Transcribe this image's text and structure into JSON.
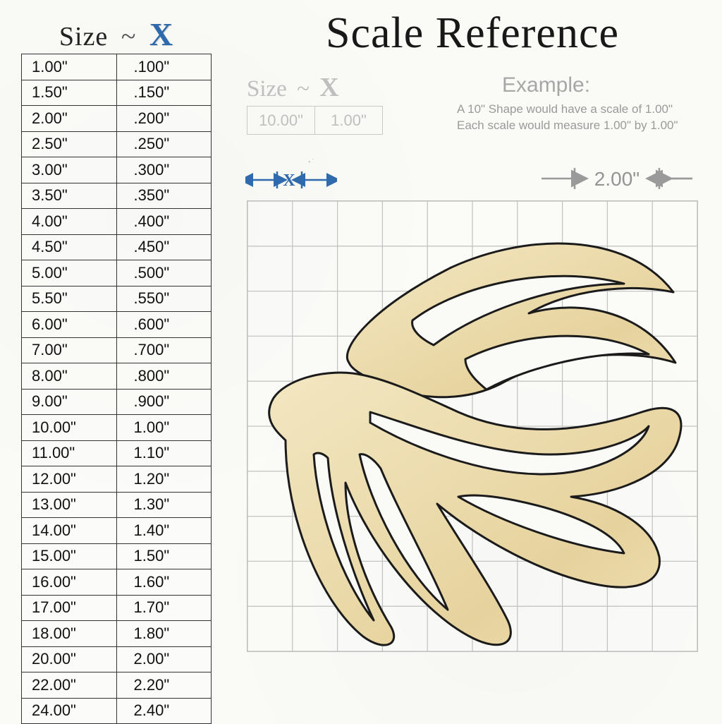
{
  "title": "Scale Reference",
  "left_header": {
    "label": "Size",
    "dash": "~",
    "x": "X"
  },
  "size_rows": [
    [
      "1.00\"",
      ".100\""
    ],
    [
      "1.50\"",
      ".150\""
    ],
    [
      "2.00\"",
      ".200\""
    ],
    [
      "2.50\"",
      ".250\""
    ],
    [
      "3.00\"",
      ".300\""
    ],
    [
      "3.50\"",
      ".350\""
    ],
    [
      "4.00\"",
      ".400\""
    ],
    [
      "4.50\"",
      ".450\""
    ],
    [
      "5.00\"",
      ".500\""
    ],
    [
      "5.50\"",
      ".550\""
    ],
    [
      "6.00\"",
      ".600\""
    ],
    [
      "7.00\"",
      ".700\""
    ],
    [
      "8.00\"",
      ".800\""
    ],
    [
      "9.00\"",
      ".900\""
    ],
    [
      "10.00\"",
      "1.00\""
    ],
    [
      "11.00\"",
      "1.10\""
    ],
    [
      "12.00\"",
      "1.20\""
    ],
    [
      "13.00\"",
      "1.30\""
    ],
    [
      "14.00\"",
      "1.40\""
    ],
    [
      "15.00\"",
      "1.50\""
    ],
    [
      "16.00\"",
      "1.60\""
    ],
    [
      "17.00\"",
      "1.70\""
    ],
    [
      "18.00\"",
      "1.80\""
    ],
    [
      "20.00\"",
      "2.00\""
    ],
    [
      "22.00\"",
      "2.20\""
    ],
    [
      "24.00\"",
      "2.40\""
    ]
  ],
  "sub_header": {
    "label": "Size",
    "dash": "~",
    "x": "X"
  },
  "sub_cells": [
    "10.00\"",
    "1.00\""
  ],
  "example": {
    "heading": "Example:",
    "line1": "A 10\" Shape would have a scale of 1.00\"",
    "line2": "Each scale would measure 1.00\" by 1.00\""
  },
  "x_indicator": {
    "label": "X",
    "arrow_color": "#2f6aad"
  },
  "grid": {
    "cells": 10,
    "line_color": "#c4c4c4",
    "border_color": "#bdbdbd",
    "scale_label": "2.00\"",
    "scale_cells": 2
  },
  "shape": {
    "fill": "#ecdcae",
    "stroke": "#1b1b1b",
    "stroke_width": 3
  },
  "colors": {
    "heading": "#181818",
    "accent": "#2f6aad",
    "muted": "#a7a7a7",
    "grid_text": "#949494",
    "table_border": "#333333",
    "sub_border": "#c9c9c9",
    "background": "#fafaf7"
  },
  "fonts": {
    "title_pt": 62,
    "header_pt": 38,
    "table_cell_pt": 22,
    "example_head_pt": 30,
    "example_body_pt": 17,
    "scale_label_pt": 28
  }
}
